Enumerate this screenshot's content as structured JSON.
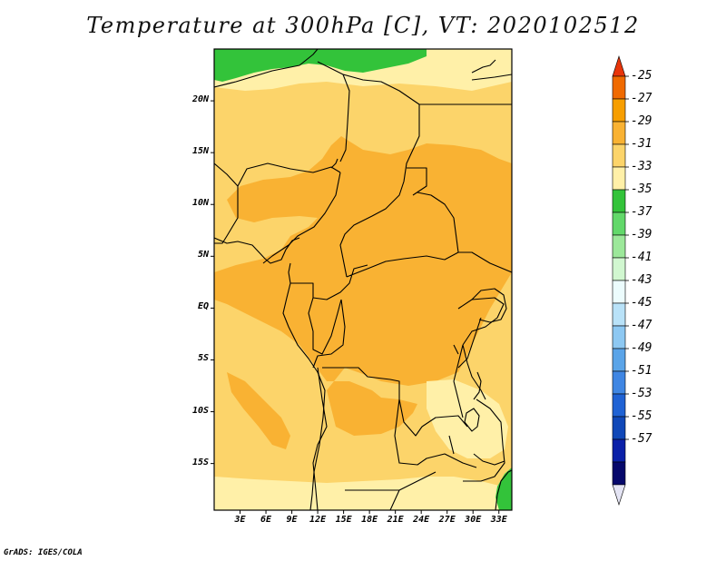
{
  "title": "Temperature at 300hPa [C], VT: 2020102512",
  "credit": "GrADS: IGES/COLA",
  "map": {
    "lat_labels": [
      "20N",
      "15N",
      "10N",
      "5N",
      "EQ",
      "5S",
      "10S",
      "15S"
    ],
    "lon_labels": [
      "3E",
      "6E",
      "9E",
      "12E",
      "15E",
      "18E",
      "21E",
      "24E",
      "27E",
      "30E",
      "33E"
    ],
    "lon_range": [
      0,
      34.5
    ],
    "lat_range": [
      -19.5,
      25
    ]
  },
  "colorbar": {
    "labels": [
      "-25",
      "-27",
      "-29",
      "-31",
      "-33",
      "-35",
      "-37",
      "-39",
      "-41",
      "-43",
      "-45",
      "-47",
      "-49",
      "-51",
      "-53",
      "-55",
      "-57"
    ],
    "colors": [
      "#e8350a",
      "#f06a00",
      "#f79e00",
      "#f9b233",
      "#fcd46a",
      "#fff0a8",
      "#33c33a",
      "#62d86a",
      "#9ce89a",
      "#d1f7d0",
      "#ecfcfd",
      "#b9e2f8",
      "#8dc8f2",
      "#5aa4e8",
      "#3f86e3",
      "#1f62d4",
      "#1048b8",
      "#0a20a8",
      "#06086b",
      "#e4e4f4"
    ]
  },
  "colors": {
    "base_light": "#fcd46a",
    "warm_m31": "#f9b233",
    "pale_m35": "#fff0a8",
    "green_m37": "#33c33a",
    "coast": "#000000"
  }
}
